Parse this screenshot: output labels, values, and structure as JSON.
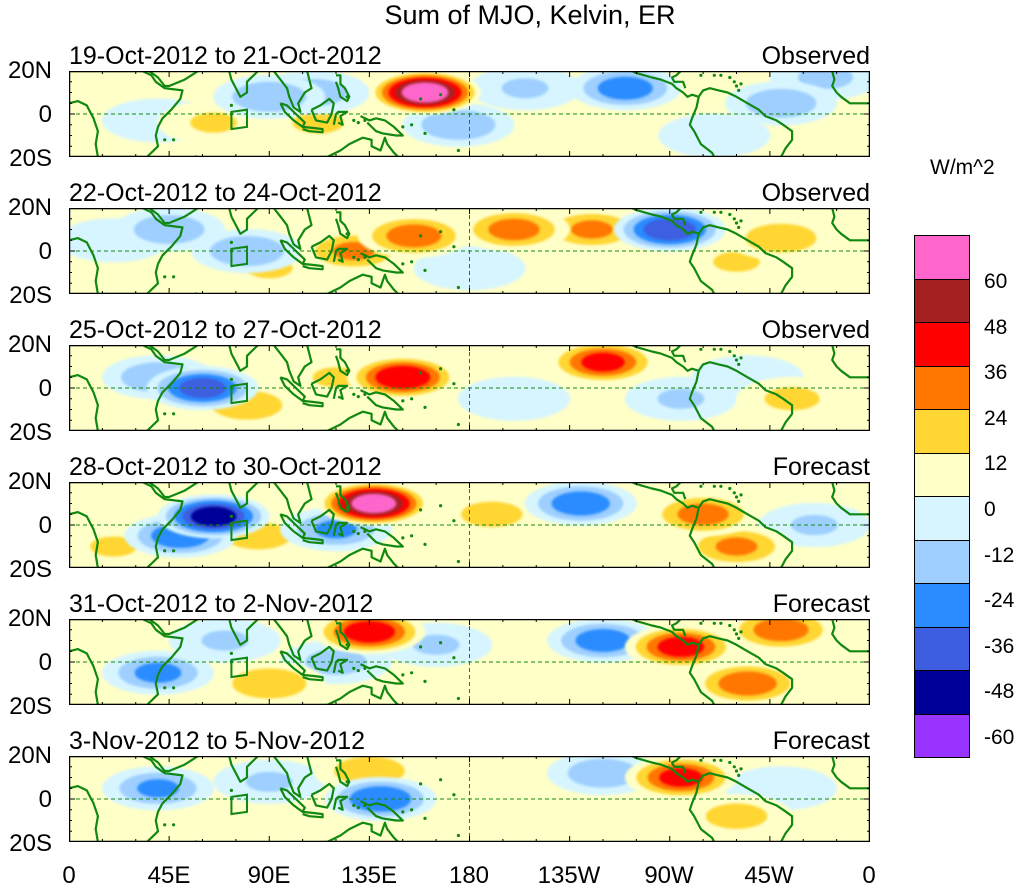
{
  "title": "Sum of MJO, Kelvin, ER",
  "lat_labels": [
    "20N",
    "0",
    "20S"
  ],
  "lon_labels": [
    "0",
    "45E",
    "90E",
    "135E",
    "180",
    "135W",
    "90W",
    "45W",
    "0"
  ],
  "panels": [
    {
      "date": "19-Oct-2012 to 21-Oct-2012",
      "type": "Observed"
    },
    {
      "date": "22-Oct-2012 to 24-Oct-2012",
      "type": "Observed"
    },
    {
      "date": "25-Oct-2012 to 27-Oct-2012",
      "type": "Observed"
    },
    {
      "date": "28-Oct-2012 to 30-Oct-2012",
      "type": "Forecast"
    },
    {
      "date": "31-Oct-2012 to 2-Nov-2012",
      "type": "Forecast"
    },
    {
      "date": "3-Nov-2012 to 5-Nov-2012",
      "type": "Forecast"
    }
  ],
  "colorbar": {
    "units": "W/m^2",
    "colors": [
      "#ff66cc",
      "#a52020",
      "#ff0000",
      "#ff7700",
      "#ffd633",
      "#ffffc8",
      "#d6f5ff",
      "#9ecfff",
      "#2a8cff",
      "#3d5ee0",
      "#000099",
      "#9933ff"
    ],
    "labels": [
      "60",
      "48",
      "36",
      "24",
      "12",
      "0",
      "-12",
      "-24",
      "-36",
      "-48",
      "-60"
    ]
  },
  "colors": {
    "land": "#118811",
    "background": "#ffffff"
  },
  "anomalies": [
    [
      {
        "lon": 160,
        "lat": 10,
        "v": 70
      },
      {
        "lon": 140,
        "lat": -4,
        "v": 12
      },
      {
        "lon": 112,
        "lat": -4,
        "v": 15
      },
      {
        "lon": 65,
        "lat": -4,
        "v": 14
      },
      {
        "lon": 40,
        "lat": -3,
        "v": -10
      },
      {
        "lon": 90,
        "lat": 8,
        "v": -24
      },
      {
        "lon": 110,
        "lat": 10,
        "v": -20
      },
      {
        "lon": 175,
        "lat": -5,
        "v": -24
      },
      {
        "lon": 205,
        "lat": 12,
        "v": -14
      },
      {
        "lon": 250,
        "lat": 12,
        "v": -32
      },
      {
        "lon": 320,
        "lat": 5,
        "v": -22
      },
      {
        "lon": 195,
        "lat": -12,
        "v": 10
      },
      {
        "lon": 290,
        "lat": -10,
        "v": -12
      },
      {
        "lon": 340,
        "lat": 17,
        "v": -16
      }
    ],
    [
      {
        "lon": 155,
        "lat": 7,
        "v": 32
      },
      {
        "lon": 200,
        "lat": 10,
        "v": 30
      },
      {
        "lon": 235,
        "lat": 10,
        "v": 26
      },
      {
        "lon": 128,
        "lat": 0,
        "v": 26
      },
      {
        "lon": 45,
        "lat": 10,
        "v": -22
      },
      {
        "lon": 80,
        "lat": 0,
        "v": -24
      },
      {
        "lon": 270,
        "lat": 10,
        "v": -46
      },
      {
        "lon": 320,
        "lat": 6,
        "v": 22
      },
      {
        "lon": 90,
        "lat": -8,
        "v": 14
      },
      {
        "lon": 180,
        "lat": -8,
        "v": -12
      },
      {
        "lon": 300,
        "lat": -5,
        "v": 14
      },
      {
        "lon": 20,
        "lat": 5,
        "v": -12
      }
    ],
    [
      {
        "lon": 150,
        "lat": 5,
        "v": 48
      },
      {
        "lon": 240,
        "lat": 12,
        "v": 40
      },
      {
        "lon": 60,
        "lat": 0,
        "v": -42
      },
      {
        "lon": 40,
        "lat": 5,
        "v": -24
      },
      {
        "lon": 120,
        "lat": 5,
        "v": 14
      },
      {
        "lon": 80,
        "lat": -8,
        "v": 22
      },
      {
        "lon": 325,
        "lat": -5,
        "v": 16
      },
      {
        "lon": 275,
        "lat": -5,
        "v": -14
      },
      {
        "lon": 200,
        "lat": -5,
        "v": -12
      },
      {
        "lon": 305,
        "lat": 5,
        "v": -12
      },
      {
        "lon": 20,
        "lat": 10,
        "v": 12
      }
    ],
    [
      {
        "lon": 137,
        "lat": 10,
        "v": 68
      },
      {
        "lon": 65,
        "lat": 4,
        "v": -55
      },
      {
        "lon": 50,
        "lat": -5,
        "v": -34
      },
      {
        "lon": 120,
        "lat": -2,
        "v": -26
      },
      {
        "lon": 230,
        "lat": 10,
        "v": -34
      },
      {
        "lon": 285,
        "lat": 5,
        "v": 30
      },
      {
        "lon": 300,
        "lat": -10,
        "v": 26
      },
      {
        "lon": 85,
        "lat": -5,
        "v": 20
      },
      {
        "lon": 190,
        "lat": 5,
        "v": 18
      },
      {
        "lon": 20,
        "lat": -10,
        "v": 14
      },
      {
        "lon": 335,
        "lat": 0,
        "v": -14
      }
    ],
    [
      {
        "lon": 135,
        "lat": 14,
        "v": 45
      },
      {
        "lon": 275,
        "lat": 7,
        "v": 42
      },
      {
        "lon": 320,
        "lat": 15,
        "v": 32
      },
      {
        "lon": 305,
        "lat": -10,
        "v": 34
      },
      {
        "lon": 240,
        "lat": 10,
        "v": -32
      },
      {
        "lon": 40,
        "lat": -5,
        "v": -28
      },
      {
        "lon": 90,
        "lat": -10,
        "v": 24
      },
      {
        "lon": 120,
        "lat": 0,
        "v": -18
      },
      {
        "lon": 165,
        "lat": 8,
        "v": -14
      },
      {
        "lon": 70,
        "lat": 10,
        "v": -14
      }
    ],
    [
      {
        "lon": 275,
        "lat": 10,
        "v": 40
      },
      {
        "lon": 140,
        "lat": 0,
        "v": -36
      },
      {
        "lon": 135,
        "lat": 13,
        "v": 22
      },
      {
        "lon": 40,
        "lat": 5,
        "v": -26
      },
      {
        "lon": 90,
        "lat": 8,
        "v": -14
      },
      {
        "lon": 240,
        "lat": 12,
        "v": -22
      },
      {
        "lon": 300,
        "lat": -8,
        "v": 18
      },
      {
        "lon": 165,
        "lat": -8,
        "v": 10
      },
      {
        "lon": 60,
        "lat": -8,
        "v": 12
      },
      {
        "lon": 320,
        "lat": 5,
        "v": -12
      }
    ]
  ]
}
